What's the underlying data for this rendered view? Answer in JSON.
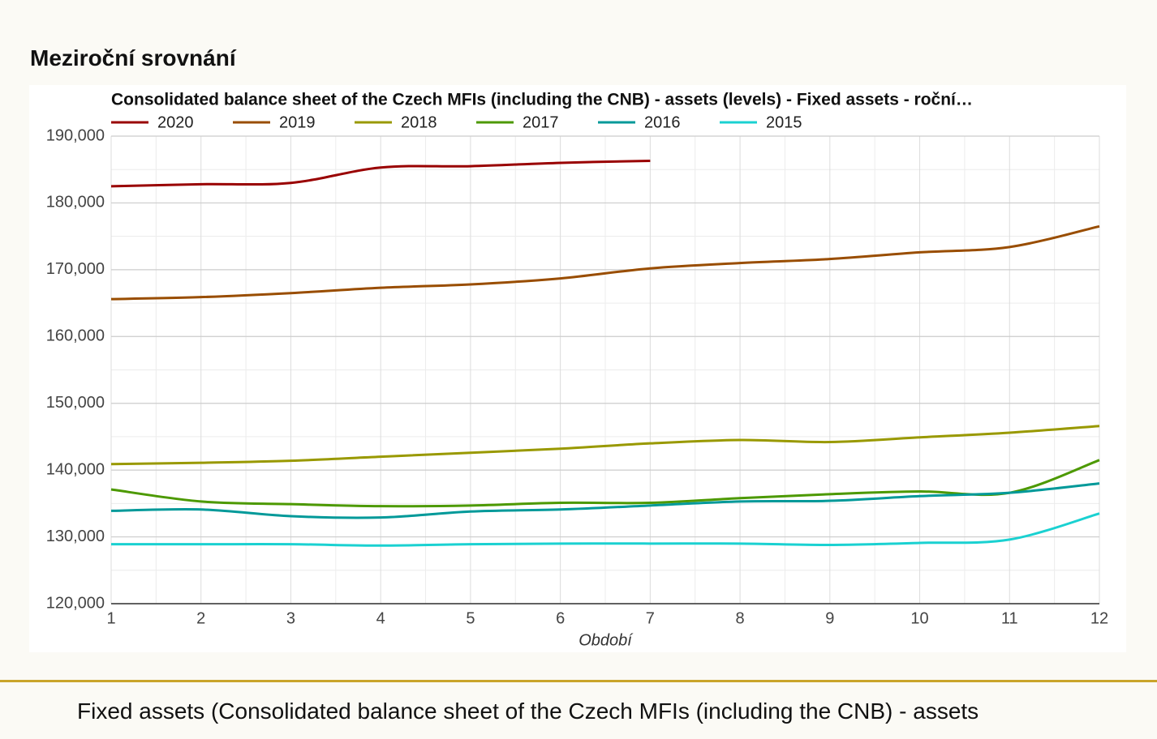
{
  "heading": "Meziroční srovnání",
  "footer": "Fixed assets (Consolidated balance sheet of the Czech MFIs (including the CNB) - assets",
  "chart_data": {
    "type": "line",
    "title": "Consolidated balance sheet of the Czech MFIs (including the CNB) - assets (levels) - Fixed assets - roční…",
    "x_label": "Období",
    "x": [
      1,
      2,
      3,
      4,
      5,
      6,
      7,
      8,
      9,
      10,
      11,
      12
    ],
    "xlim": [
      1,
      12
    ],
    "xticks": [
      1,
      2,
      3,
      4,
      5,
      6,
      7,
      8,
      9,
      10,
      11,
      12
    ],
    "ylim": [
      120000,
      190000
    ],
    "yticks": [
      {
        "value": 120000,
        "label": "120,000"
      },
      {
        "value": 130000,
        "label": "130,000"
      },
      {
        "value": 140000,
        "label": "140,000"
      },
      {
        "value": 150000,
        "label": "150,000"
      },
      {
        "value": 160000,
        "label": "160,000"
      },
      {
        "value": 170000,
        "label": "170,000"
      },
      {
        "value": 180000,
        "label": "180,000"
      },
      {
        "value": 190000,
        "label": "190,000"
      }
    ],
    "grid": true,
    "legend": "top",
    "series": [
      {
        "name": "2020",
        "color": "#990000",
        "values": [
          182500,
          182800,
          183000,
          185300,
          185500,
          186000,
          186300,
          null,
          null,
          null,
          null,
          null
        ]
      },
      {
        "name": "2019",
        "color": "#994d00",
        "values": [
          165600,
          165900,
          166500,
          167300,
          167800,
          168700,
          170200,
          171000,
          171600,
          172600,
          173400,
          176500
        ]
      },
      {
        "name": "2018",
        "color": "#999900",
        "values": [
          140900,
          141100,
          141400,
          142000,
          142600,
          143200,
          144000,
          144500,
          144200,
          144900,
          145600,
          146600
        ]
      },
      {
        "name": "2017",
        "color": "#4c9900",
        "values": [
          137100,
          135300,
          134900,
          134600,
          134700,
          135100,
          135100,
          135800,
          136400,
          136800,
          136600,
          141500
        ]
      },
      {
        "name": "2016",
        "color": "#009999",
        "values": [
          133900,
          134100,
          133100,
          132900,
          133800,
          134100,
          134700,
          135300,
          135400,
          136100,
          136600,
          138000
        ]
      },
      {
        "name": "2015",
        "color": "#1ad1d1",
        "values": [
          128900,
          128900,
          128900,
          128700,
          128900,
          129000,
          129000,
          129000,
          128800,
          129100,
          129600,
          133500
        ]
      }
    ]
  }
}
